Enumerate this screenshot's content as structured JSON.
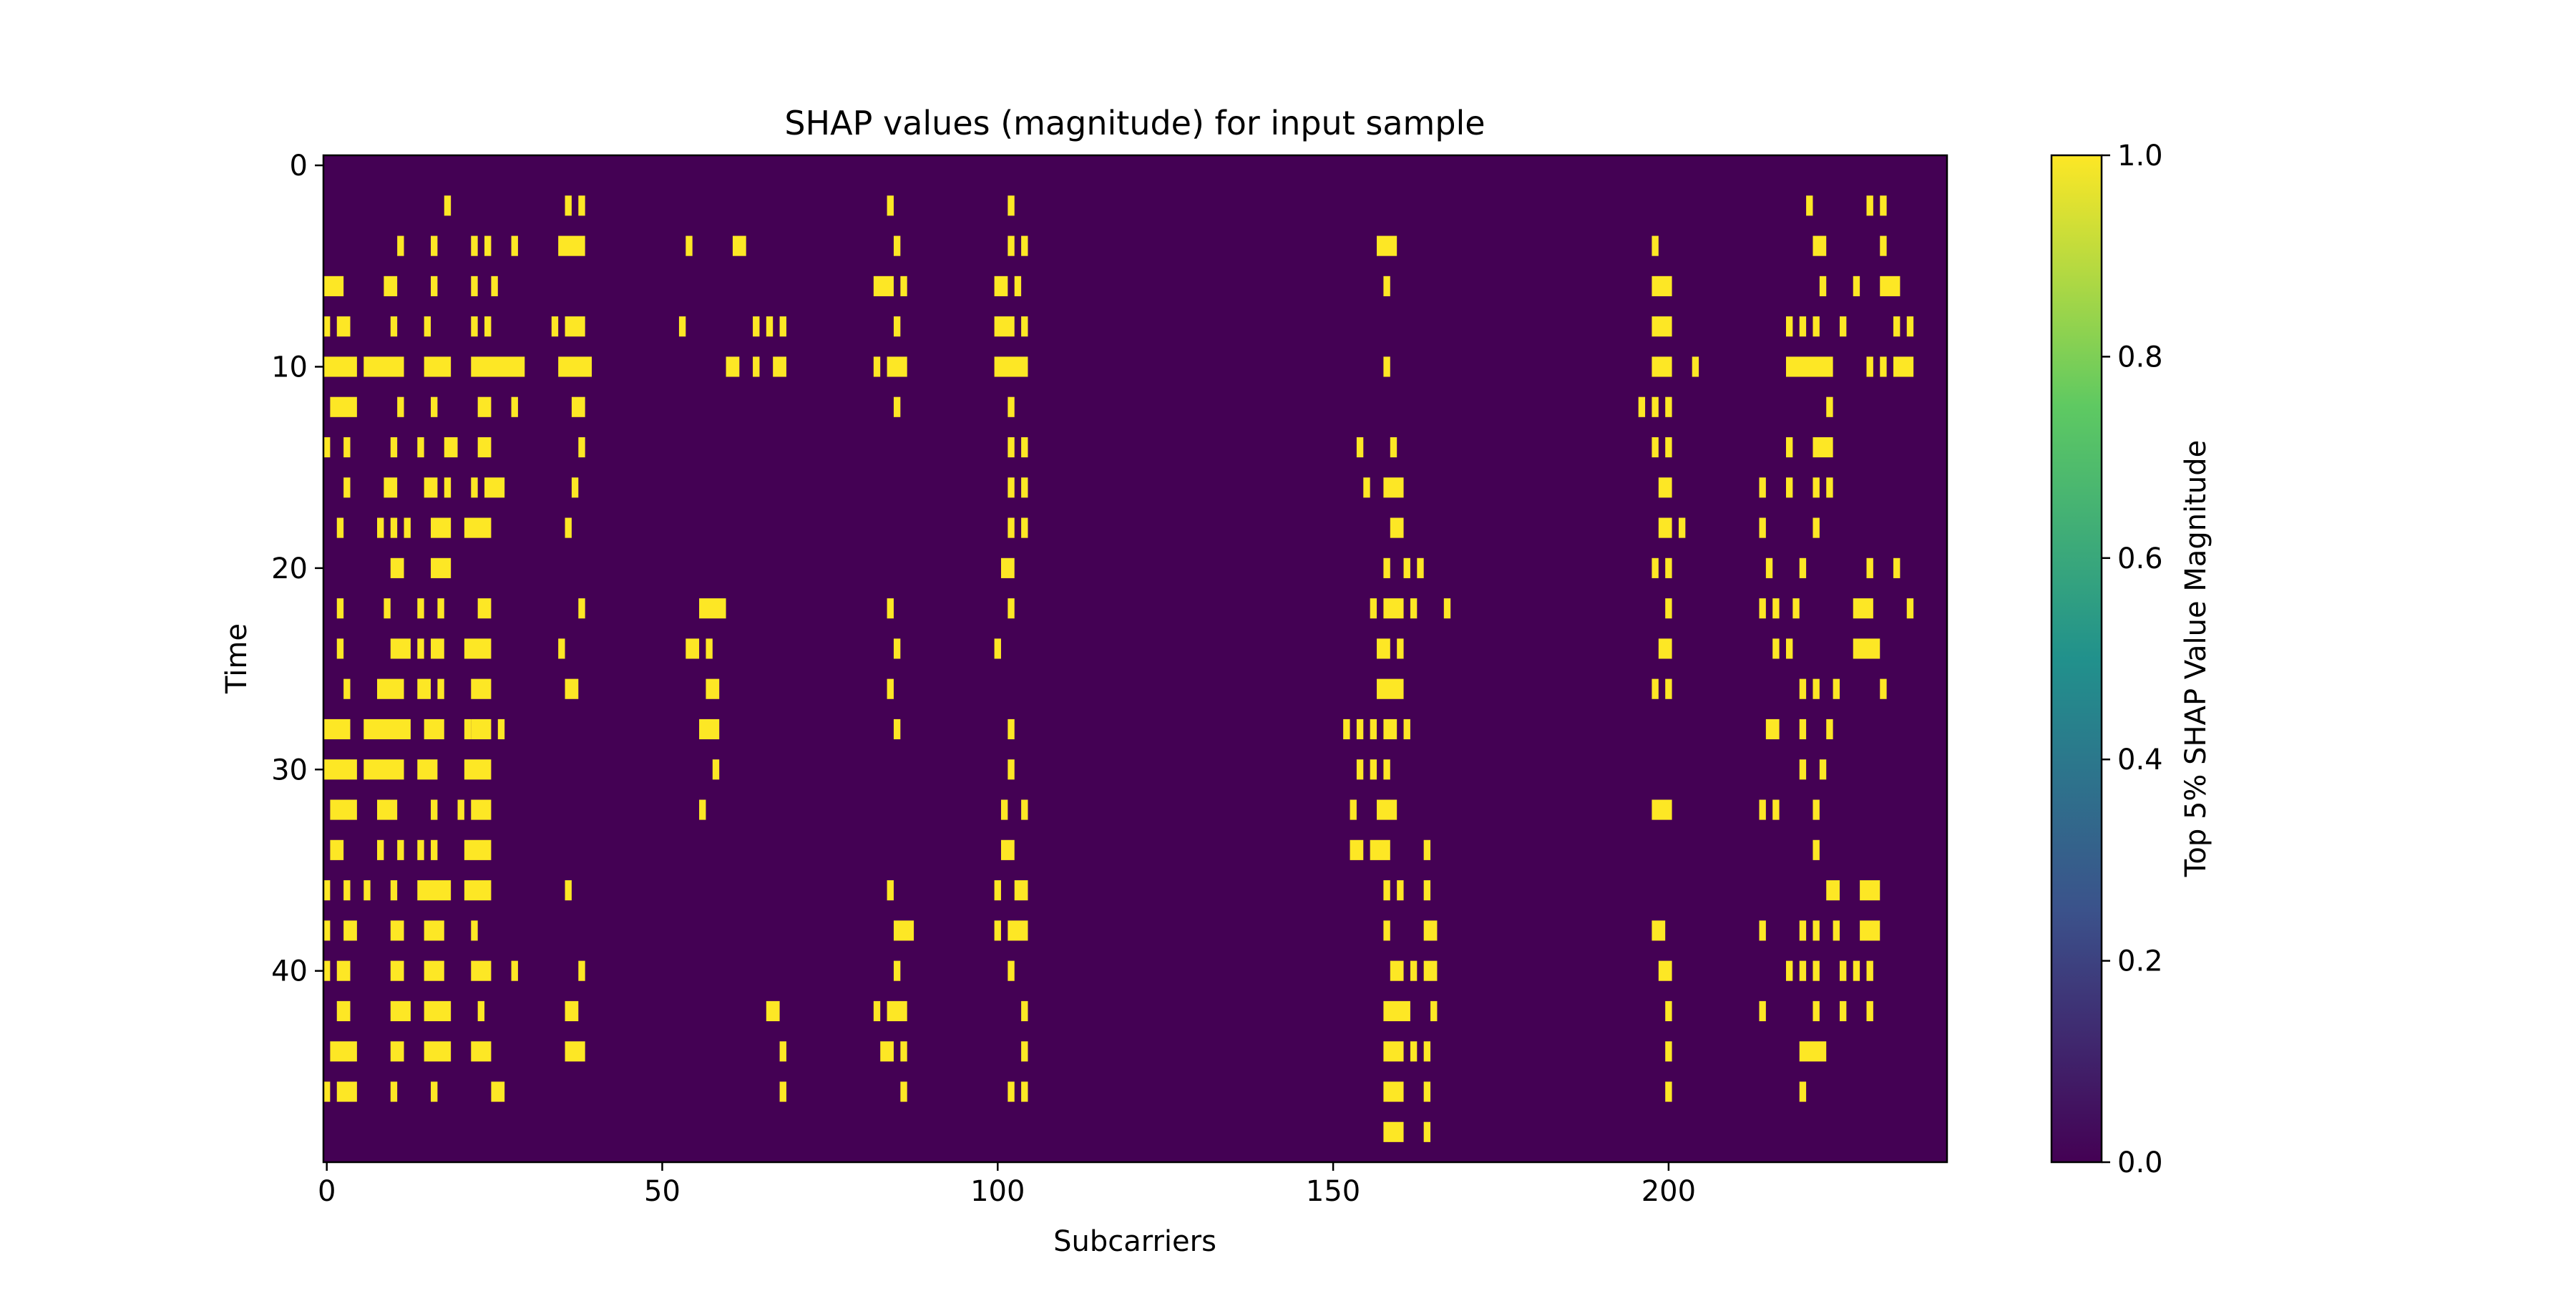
{
  "chart_data": {
    "type": "heatmap",
    "title": "SHAP values (magnitude) for input sample",
    "xlabel": "Subcarriers",
    "ylabel": "Time",
    "colorbar_label": "Top 5% SHAP Value Magnitude",
    "xlim": [
      -0.5,
      241.5
    ],
    "ylim": [
      49.5,
      -0.5
    ],
    "x_ticks": [
      0,
      50,
      100,
      150,
      200
    ],
    "x_tick_labels": [
      "0",
      "50",
      "100",
      "150",
      "200"
    ],
    "y_ticks": [
      0,
      10,
      20,
      30,
      40
    ],
    "y_tick_labels": [
      "0",
      "10",
      "20",
      "30",
      "40"
    ],
    "colorbar_range": [
      0.0,
      1.0
    ],
    "colorbar_ticks": [
      0.0,
      0.2,
      0.4,
      0.6,
      0.8,
      1.0
    ],
    "colorbar_tick_labels": [
      "0.0",
      "0.2",
      "0.4",
      "0.6",
      "0.8",
      "1.0"
    ],
    "colormap": [
      "#440154",
      "#3b528b",
      "#21918c",
      "#5ec962",
      "#fde725"
    ],
    "background_color": "#440154",
    "highlight_color": "#fde725",
    "value_outside_segments": 0,
    "value_inside_segments": 1,
    "rows_segments": [
      [],
      [],
      [
        [
          18,
          18
        ],
        [
          36,
          36
        ],
        [
          38,
          38
        ],
        [
          84,
          84
        ],
        [
          102,
          102
        ],
        [
          221,
          221
        ],
        [
          230,
          230
        ],
        [
          232,
          232
        ]
      ],
      [],
      [
        [
          11,
          11
        ],
        [
          16,
          16
        ],
        [
          22,
          22
        ],
        [
          24,
          24
        ],
        [
          28,
          28
        ],
        [
          35,
          38
        ],
        [
          54,
          54
        ],
        [
          61,
          62
        ],
        [
          85,
          85
        ],
        [
          102,
          102
        ],
        [
          104,
          104
        ],
        [
          157,
          159
        ],
        [
          198,
          198
        ],
        [
          222,
          223
        ],
        [
          232,
          232
        ]
      ],
      [],
      [
        [
          0,
          2
        ],
        [
          9,
          10
        ],
        [
          16,
          16
        ],
        [
          22,
          22
        ],
        [
          25,
          25
        ],
        [
          82,
          84
        ],
        [
          86,
          86
        ],
        [
          100,
          101
        ],
        [
          103,
          103
        ],
        [
          158,
          158
        ],
        [
          198,
          200
        ],
        [
          223,
          223
        ],
        [
          228,
          228
        ],
        [
          232,
          234
        ]
      ],
      [],
      [
        [
          0,
          0
        ],
        [
          2,
          3
        ],
        [
          10,
          10
        ],
        [
          15,
          15
        ],
        [
          22,
          22
        ],
        [
          24,
          24
        ],
        [
          34,
          34
        ],
        [
          36,
          38
        ],
        [
          53,
          53
        ],
        [
          64,
          64
        ],
        [
          66,
          66
        ],
        [
          68,
          68
        ],
        [
          85,
          85
        ],
        [
          100,
          102
        ],
        [
          104,
          104
        ],
        [
          198,
          200
        ],
        [
          218,
          218
        ],
        [
          220,
          220
        ],
        [
          222,
          222
        ],
        [
          226,
          226
        ],
        [
          234,
          234
        ],
        [
          236,
          236
        ]
      ],
      [],
      [
        [
          0,
          4
        ],
        [
          6,
          11
        ],
        [
          15,
          18
        ],
        [
          22,
          29
        ],
        [
          35,
          39
        ],
        [
          60,
          61
        ],
        [
          64,
          64
        ],
        [
          67,
          68
        ],
        [
          82,
          82
        ],
        [
          84,
          86
        ],
        [
          100,
          104
        ],
        [
          158,
          158
        ],
        [
          198,
          200
        ],
        [
          204,
          204
        ],
        [
          218,
          224
        ],
        [
          230,
          230
        ],
        [
          232,
          232
        ],
        [
          234,
          236
        ]
      ],
      [],
      [
        [
          1,
          4
        ],
        [
          11,
          11
        ],
        [
          16,
          16
        ],
        [
          23,
          24
        ],
        [
          28,
          28
        ],
        [
          37,
          38
        ],
        [
          85,
          85
        ],
        [
          102,
          102
        ],
        [
          196,
          196
        ],
        [
          198,
          198
        ],
        [
          200,
          200
        ],
        [
          224,
          224
        ]
      ],
      [],
      [
        [
          0,
          0
        ],
        [
          3,
          3
        ],
        [
          10,
          10
        ],
        [
          14,
          14
        ],
        [
          18,
          19
        ],
        [
          23,
          24
        ],
        [
          38,
          38
        ],
        [
          102,
          102
        ],
        [
          104,
          104
        ],
        [
          154,
          154
        ],
        [
          159,
          159
        ],
        [
          198,
          198
        ],
        [
          200,
          200
        ],
        [
          218,
          218
        ],
        [
          222,
          224
        ]
      ],
      [],
      [
        [
          3,
          3
        ],
        [
          9,
          10
        ],
        [
          15,
          16
        ],
        [
          18,
          18
        ],
        [
          22,
          22
        ],
        [
          24,
          26
        ],
        [
          37,
          37
        ],
        [
          102,
          102
        ],
        [
          104,
          104
        ],
        [
          155,
          155
        ],
        [
          158,
          160
        ],
        [
          199,
          200
        ],
        [
          214,
          214
        ],
        [
          218,
          218
        ],
        [
          222,
          222
        ],
        [
          224,
          224
        ]
      ],
      [],
      [
        [
          2,
          2
        ],
        [
          8,
          8
        ],
        [
          10,
          10
        ],
        [
          12,
          12
        ],
        [
          16,
          18
        ],
        [
          21,
          24
        ],
        [
          36,
          36
        ],
        [
          102,
          102
        ],
        [
          104,
          104
        ],
        [
          159,
          160
        ],
        [
          199,
          200
        ],
        [
          202,
          202
        ],
        [
          214,
          214
        ],
        [
          222,
          222
        ]
      ],
      [],
      [
        [
          10,
          11
        ],
        [
          16,
          18
        ],
        [
          101,
          102
        ],
        [
          158,
          158
        ],
        [
          161,
          161
        ],
        [
          163,
          163
        ],
        [
          198,
          198
        ],
        [
          200,
          200
        ],
        [
          215,
          215
        ],
        [
          220,
          220
        ],
        [
          230,
          230
        ],
        [
          234,
          234
        ]
      ],
      [],
      [
        [
          2,
          2
        ],
        [
          9,
          9
        ],
        [
          14,
          14
        ],
        [
          17,
          17
        ],
        [
          23,
          24
        ],
        [
          38,
          38
        ],
        [
          56,
          59
        ],
        [
          84,
          84
        ],
        [
          102,
          102
        ],
        [
          156,
          156
        ],
        [
          158,
          160
        ],
        [
          162,
          162
        ],
        [
          167,
          167
        ],
        [
          200,
          200
        ],
        [
          214,
          214
        ],
        [
          216,
          216
        ],
        [
          219,
          219
        ],
        [
          228,
          230
        ],
        [
          236,
          236
        ]
      ],
      [],
      [
        [
          2,
          2
        ],
        [
          10,
          12
        ],
        [
          14,
          14
        ],
        [
          16,
          17
        ],
        [
          21,
          24
        ],
        [
          35,
          35
        ],
        [
          54,
          55
        ],
        [
          57,
          57
        ],
        [
          85,
          85
        ],
        [
          100,
          100
        ],
        [
          157,
          158
        ],
        [
          160,
          160
        ],
        [
          199,
          200
        ],
        [
          216,
          216
        ],
        [
          218,
          218
        ],
        [
          228,
          231
        ]
      ],
      [],
      [
        [
          3,
          3
        ],
        [
          8,
          11
        ],
        [
          14,
          15
        ],
        [
          17,
          17
        ],
        [
          22,
          24
        ],
        [
          36,
          37
        ],
        [
          57,
          58
        ],
        [
          84,
          84
        ],
        [
          157,
          160
        ],
        [
          198,
          198
        ],
        [
          200,
          200
        ],
        [
          220,
          220
        ],
        [
          222,
          222
        ],
        [
          225,
          225
        ],
        [
          232,
          232
        ]
      ],
      [],
      [
        [
          0,
          3
        ],
        [
          6,
          12
        ],
        [
          15,
          17
        ],
        [
          21,
          21
        ],
        [
          22,
          24
        ],
        [
          26,
          26
        ],
        [
          56,
          58
        ],
        [
          85,
          85
        ],
        [
          102,
          102
        ],
        [
          152,
          152
        ],
        [
          154,
          154
        ],
        [
          156,
          156
        ],
        [
          158,
          159
        ],
        [
          161,
          161
        ],
        [
          215,
          216
        ],
        [
          220,
          220
        ],
        [
          224,
          224
        ]
      ],
      [],
      [
        [
          0,
          4
        ],
        [
          6,
          11
        ],
        [
          14,
          16
        ],
        [
          21,
          24
        ],
        [
          58,
          58
        ],
        [
          102,
          102
        ],
        [
          154,
          154
        ],
        [
          156,
          156
        ],
        [
          158,
          158
        ],
        [
          220,
          220
        ],
        [
          223,
          223
        ]
      ],
      [],
      [
        [
          1,
          4
        ],
        [
          8,
          10
        ],
        [
          16,
          16
        ],
        [
          20,
          20
        ],
        [
          22,
          24
        ],
        [
          56,
          56
        ],
        [
          101,
          101
        ],
        [
          104,
          104
        ],
        [
          153,
          153
        ],
        [
          157,
          159
        ],
        [
          198,
          200
        ],
        [
          214,
          214
        ],
        [
          216,
          216
        ],
        [
          222,
          222
        ]
      ],
      [],
      [
        [
          1,
          2
        ],
        [
          8,
          8
        ],
        [
          11,
          11
        ],
        [
          14,
          14
        ],
        [
          16,
          16
        ],
        [
          21,
          24
        ],
        [
          101,
          102
        ],
        [
          153,
          154
        ],
        [
          156,
          158
        ],
        [
          164,
          164
        ],
        [
          222,
          222
        ]
      ],
      [],
      [
        [
          0,
          0
        ],
        [
          3,
          3
        ],
        [
          6,
          6
        ],
        [
          10,
          10
        ],
        [
          14,
          18
        ],
        [
          21,
          24
        ],
        [
          36,
          36
        ],
        [
          84,
          84
        ],
        [
          100,
          100
        ],
        [
          103,
          104
        ],
        [
          158,
          158
        ],
        [
          160,
          160
        ],
        [
          164,
          164
        ],
        [
          224,
          225
        ],
        [
          229,
          231
        ]
      ],
      [],
      [
        [
          0,
          0
        ],
        [
          3,
          4
        ],
        [
          10,
          11
        ],
        [
          15,
          17
        ],
        [
          22,
          22
        ],
        [
          85,
          87
        ],
        [
          100,
          100
        ],
        [
          102,
          104
        ],
        [
          158,
          158
        ],
        [
          164,
          165
        ],
        [
          198,
          199
        ],
        [
          214,
          214
        ],
        [
          220,
          220
        ],
        [
          222,
          222
        ],
        [
          225,
          225
        ],
        [
          229,
          231
        ]
      ],
      [],
      [
        [
          0,
          0
        ],
        [
          2,
          3
        ],
        [
          10,
          11
        ],
        [
          15,
          17
        ],
        [
          22,
          24
        ],
        [
          28,
          28
        ],
        [
          38,
          38
        ],
        [
          85,
          85
        ],
        [
          102,
          102
        ],
        [
          159,
          160
        ],
        [
          162,
          162
        ],
        [
          164,
          165
        ],
        [
          199,
          200
        ],
        [
          218,
          218
        ],
        [
          220,
          220
        ],
        [
          222,
          222
        ],
        [
          226,
          226
        ],
        [
          228,
          228
        ],
        [
          230,
          230
        ]
      ],
      [],
      [
        [
          2,
          3
        ],
        [
          10,
          12
        ],
        [
          15,
          18
        ],
        [
          23,
          23
        ],
        [
          36,
          37
        ],
        [
          66,
          67
        ],
        [
          82,
          82
        ],
        [
          84,
          86
        ],
        [
          104,
          104
        ],
        [
          158,
          161
        ],
        [
          165,
          165
        ],
        [
          200,
          200
        ],
        [
          214,
          214
        ],
        [
          222,
          222
        ],
        [
          226,
          226
        ],
        [
          230,
          230
        ]
      ],
      [],
      [
        [
          1,
          4
        ],
        [
          10,
          11
        ],
        [
          15,
          18
        ],
        [
          22,
          24
        ],
        [
          36,
          38
        ],
        [
          68,
          68
        ],
        [
          83,
          84
        ],
        [
          86,
          86
        ],
        [
          104,
          104
        ],
        [
          158,
          160
        ],
        [
          162,
          162
        ],
        [
          164,
          164
        ],
        [
          200,
          200
        ],
        [
          220,
          223
        ]
      ],
      [],
      [
        [
          0,
          0
        ],
        [
          2,
          4
        ],
        [
          10,
          10
        ],
        [
          16,
          16
        ],
        [
          25,
          26
        ],
        [
          68,
          68
        ],
        [
          86,
          86
        ],
        [
          102,
          102
        ],
        [
          104,
          104
        ],
        [
          158,
          160
        ],
        [
          164,
          164
        ],
        [
          200,
          200
        ],
        [
          220,
          220
        ]
      ],
      [],
      [
        [
          158,
          160
        ],
        [
          164,
          164
        ]
      ],
      []
    ]
  }
}
